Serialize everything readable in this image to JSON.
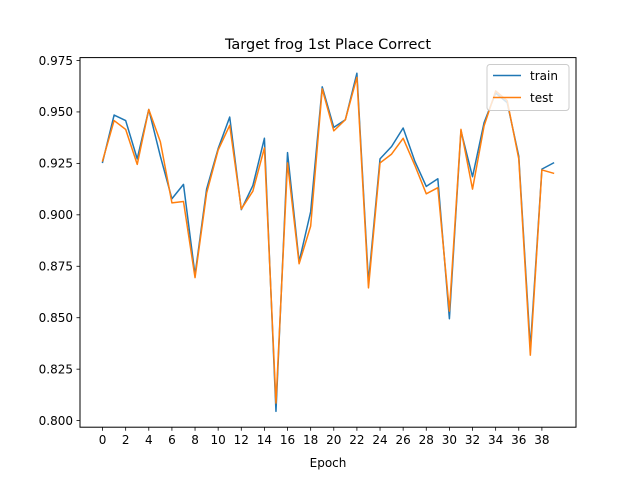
{
  "chart_data": {
    "type": "line",
    "title": "Target frog 1st Place Correct",
    "xlabel": "Epoch",
    "ylabel": "",
    "xlim": [
      -1.95,
      40.95
    ],
    "ylim": [
      0.7968,
      0.9764
    ],
    "x_ticks": [
      0,
      2,
      4,
      6,
      8,
      10,
      12,
      14,
      16,
      18,
      20,
      22,
      24,
      26,
      28,
      30,
      32,
      34,
      36,
      38
    ],
    "y_ticks": [
      0.8,
      0.825,
      0.85,
      0.875,
      0.9,
      0.925,
      0.95,
      0.975
    ],
    "y_tick_labels": [
      "0.800",
      "0.825",
      "0.850",
      "0.875",
      "0.900",
      "0.925",
      "0.950",
      "0.975"
    ],
    "grid": false,
    "legend": {
      "position": "top-right"
    },
    "x": [
      0,
      1,
      2,
      3,
      4,
      5,
      6,
      7,
      8,
      9,
      10,
      11,
      12,
      13,
      14,
      15,
      16,
      17,
      18,
      19,
      20,
      21,
      22,
      23,
      24,
      25,
      26,
      27,
      28,
      29,
      30,
      31,
      32,
      33,
      34,
      35,
      36,
      37,
      38,
      39
    ],
    "series": [
      {
        "name": "train",
        "color": "#1f77b4",
        "values": [
          0.9255,
          0.9485,
          0.9458,
          0.9272,
          0.9512,
          0.9285,
          0.9078,
          0.9148,
          0.8708,
          0.9125,
          0.9322,
          0.9475,
          0.9025,
          0.9142,
          0.9372,
          0.8045,
          0.9302,
          0.8772,
          0.9015,
          0.9622,
          0.9425,
          0.9462,
          0.9688,
          0.8672,
          0.9272,
          0.9332,
          0.9422,
          0.9262,
          0.9138,
          0.9175,
          0.8495,
          0.9408,
          0.9185,
          0.9448,
          0.9592,
          0.9545,
          0.9285,
          0.8352,
          0.9222,
          0.9252
        ]
      },
      {
        "name": "test",
        "color": "#ff7f0e",
        "values": [
          0.9262,
          0.9458,
          0.9415,
          0.9245,
          0.9512,
          0.9355,
          0.9058,
          0.9065,
          0.8695,
          0.9105,
          0.9315,
          0.9435,
          0.9028,
          0.9115,
          0.9325,
          0.8085,
          0.9252,
          0.8762,
          0.8945,
          0.9612,
          0.9408,
          0.9462,
          0.9668,
          0.8645,
          0.9252,
          0.9295,
          0.9372,
          0.9242,
          0.9102,
          0.9132,
          0.8532,
          0.9415,
          0.9125,
          0.9432,
          0.9602,
          0.9555,
          0.9272,
          0.8318,
          0.9218,
          0.9202
        ]
      }
    ]
  }
}
